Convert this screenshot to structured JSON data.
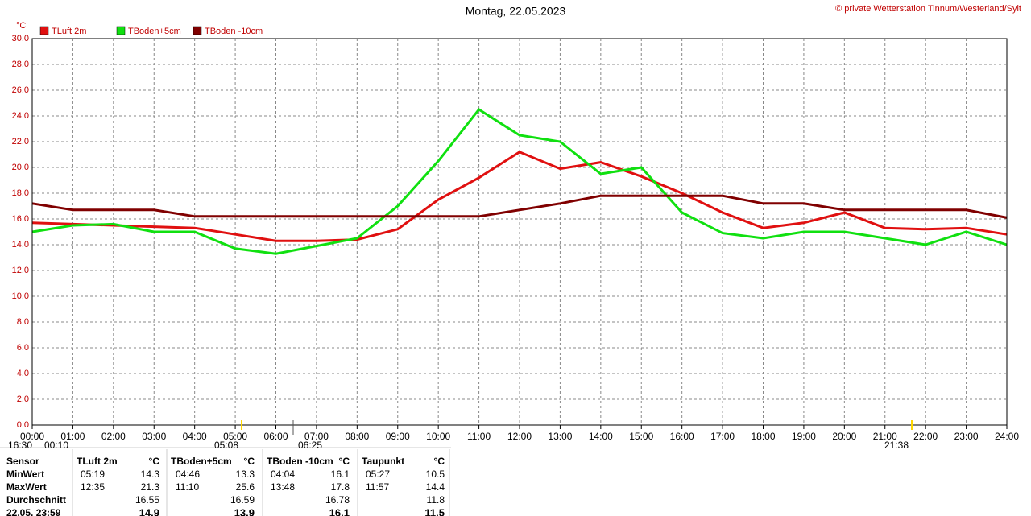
{
  "chart_data": {
    "type": "line",
    "title": "Montag, 22.05.2023",
    "credit": "© private Wetterstation Tinnum/Westerland/Sylt",
    "y_unit": "°C",
    "x": [
      0,
      1,
      2,
      3,
      4,
      5,
      6,
      7,
      8,
      9,
      10,
      11,
      12,
      13,
      14,
      15,
      16,
      17,
      18,
      19,
      20,
      21,
      22,
      23,
      24
    ],
    "xlim": [
      0,
      24
    ],
    "xticks": [
      {
        "value": 0,
        "label": "00:00"
      },
      {
        "value": 1,
        "label": "01:00"
      },
      {
        "value": 2,
        "label": "02:00"
      },
      {
        "value": 3,
        "label": "03:00"
      },
      {
        "value": 4,
        "label": "04:00"
      },
      {
        "value": 5,
        "label": "05:00"
      },
      {
        "value": 6,
        "label": "06:00"
      },
      {
        "value": 7,
        "label": "07:00"
      },
      {
        "value": 8,
        "label": "08:00"
      },
      {
        "value": 9,
        "label": "09:00"
      },
      {
        "value": 10,
        "label": "10:00"
      },
      {
        "value": 11,
        "label": "11:00"
      },
      {
        "value": 12,
        "label": "12:00"
      },
      {
        "value": 13,
        "label": "13:00"
      },
      {
        "value": 14,
        "label": "14:00"
      },
      {
        "value": 15,
        "label": "15:00"
      },
      {
        "value": 16,
        "label": "16:00"
      },
      {
        "value": 17,
        "label": "17:00"
      },
      {
        "value": 18,
        "label": "18:00"
      },
      {
        "value": 19,
        "label": "19:00"
      },
      {
        "value": 20,
        "label": "20:00"
      },
      {
        "value": 21,
        "label": "21:00"
      },
      {
        "value": 22,
        "label": "22:00"
      },
      {
        "value": 23,
        "label": "23:00"
      },
      {
        "value": 24,
        "label": "24:00"
      }
    ],
    "ylim": [
      0,
      30
    ],
    "yticks": [
      {
        "value": 0,
        "label": "0.0"
      },
      {
        "value": 2,
        "label": "2.0"
      },
      {
        "value": 4,
        "label": "4.0"
      },
      {
        "value": 6,
        "label": "6.0"
      },
      {
        "value": 8,
        "label": "8.0"
      },
      {
        "value": 10,
        "label": "10.0"
      },
      {
        "value": 12,
        "label": "12.0"
      },
      {
        "value": 14,
        "label": "14.0"
      },
      {
        "value": 16,
        "label": "16.0"
      },
      {
        "value": 18,
        "label": "18.0"
      },
      {
        "value": 20,
        "label": "20.0"
      },
      {
        "value": 22,
        "label": "22.0"
      },
      {
        "value": 24,
        "label": "24.0"
      },
      {
        "value": 26,
        "label": "26.0"
      },
      {
        "value": 28,
        "label": "28.0"
      },
      {
        "value": 30,
        "label": "30.0"
      }
    ],
    "grid": true,
    "series": [
      {
        "name": "TLuft 2m",
        "color": "#e01010",
        "values": [
          15.7,
          15.6,
          15.5,
          15.4,
          15.3,
          14.8,
          14.3,
          14.3,
          14.4,
          15.2,
          17.5,
          19.2,
          21.2,
          19.9,
          20.4,
          19.3,
          18.0,
          16.5,
          15.3,
          15.7,
          16.5,
          15.3,
          15.2,
          15.3,
          14.8
        ]
      },
      {
        "name": "TBoden+5cm",
        "color": "#10e010",
        "values": [
          15.0,
          15.5,
          15.6,
          15.0,
          15.0,
          13.7,
          13.3,
          13.9,
          14.5,
          17.0,
          20.5,
          24.5,
          22.5,
          22.0,
          19.5,
          20.0,
          16.5,
          14.9,
          14.5,
          15.0,
          15.0,
          14.5,
          14.0,
          15.0,
          14.0
        ]
      },
      {
        "name": "TBoden -10cm",
        "color": "#800000",
        "values": [
          17.2,
          16.7,
          16.7,
          16.7,
          16.2,
          16.2,
          16.2,
          16.2,
          16.2,
          16.2,
          16.2,
          16.2,
          16.7,
          17.2,
          17.8,
          17.8,
          17.8,
          17.8,
          17.2,
          17.2,
          16.7,
          16.7,
          16.7,
          16.7,
          16.1
        ]
      }
    ],
    "time_labels": [
      "16:30",
      "00:10",
      "05:08",
      "06:25",
      "21:38"
    ]
  },
  "table": {
    "header": [
      "Sensor",
      "TLuft 2m",
      "°C",
      "TBoden+5cm",
      "°C",
      "TBoden -10cm",
      "°C",
      "Taupunkt",
      "°C"
    ],
    "rows": [
      [
        "MinWert",
        "05:19",
        14.3,
        "04:46",
        13.3,
        "04:04",
        16.1,
        "05:27",
        10.5
      ],
      [
        "MaxWert",
        "12:35",
        21.3,
        "11:10",
        25.6,
        "13:48",
        17.8,
        "11:57",
        14.4
      ],
      [
        "Durchschnitt",
        null,
        16.55,
        null,
        16.59,
        null,
        16.78,
        null,
        11.8
      ],
      [
        "22.05. 23:59",
        null,
        14.9,
        null,
        13.9,
        null,
        16.1,
        null,
        11.5
      ]
    ]
  }
}
